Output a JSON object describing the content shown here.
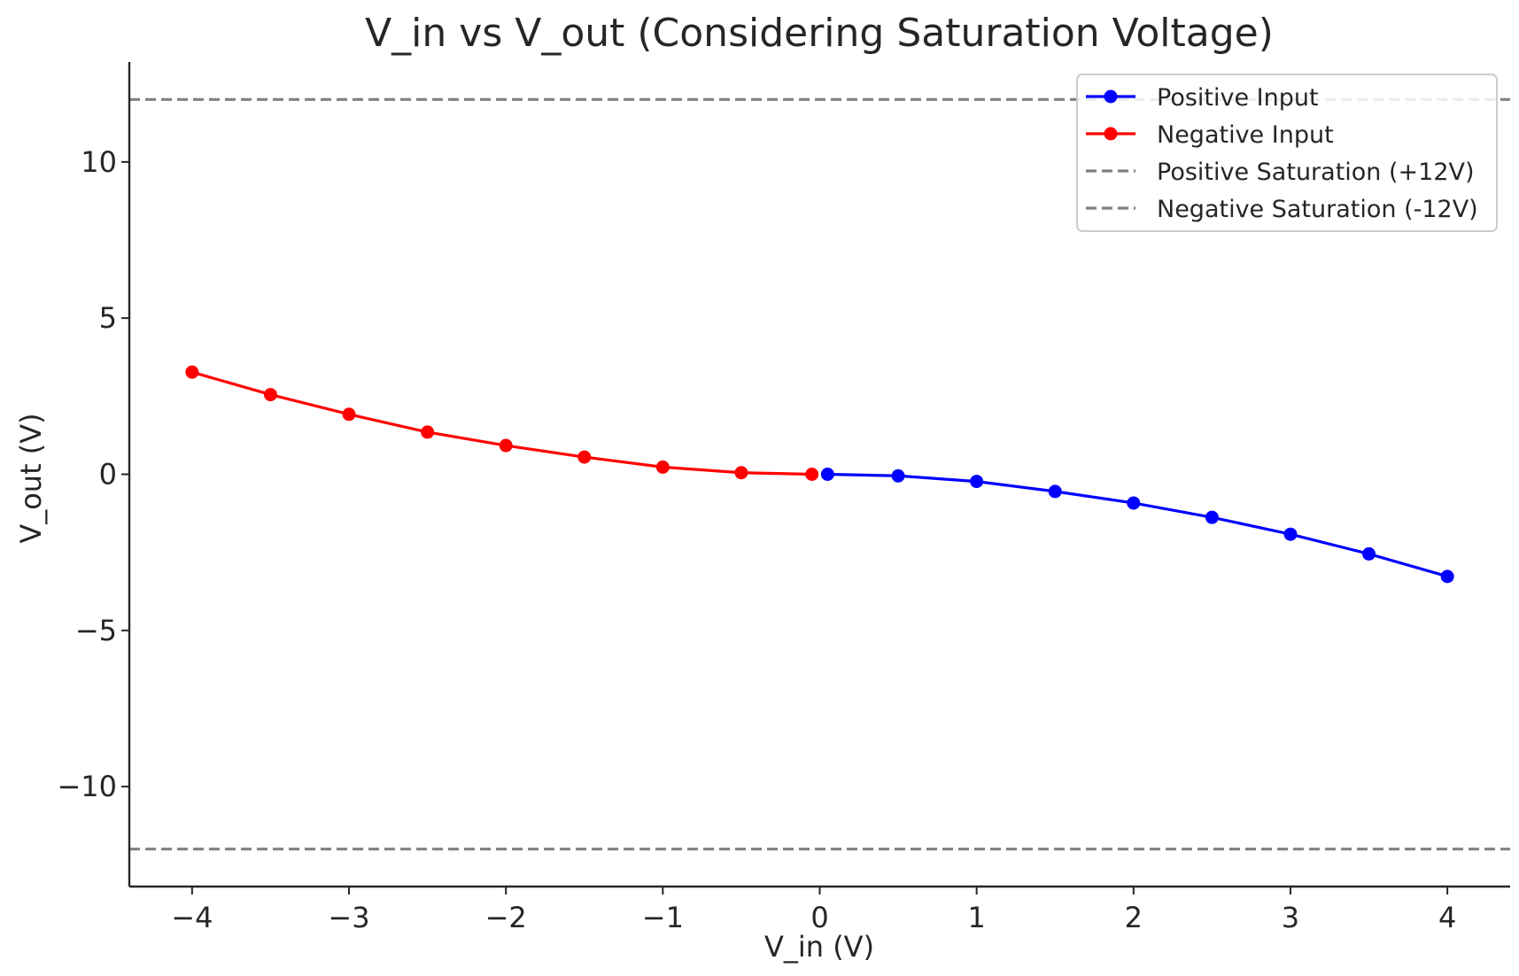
{
  "chart_data": {
    "type": "line",
    "title": "V_in vs V_out (Considering Saturation Voltage)",
    "xlabel": "V_in (V)",
    "ylabel": "V_out (V)",
    "xlim": [
      -4.4,
      4.4
    ],
    "ylim": [
      -13.2,
      13.2
    ],
    "xticks": [
      -4,
      -3,
      -2,
      -1,
      0,
      1,
      2,
      3,
      4
    ],
    "xtick_labels": [
      "−4",
      "−3",
      "−2",
      "−1",
      "0",
      "1",
      "2",
      "3",
      "4"
    ],
    "yticks": [
      -10,
      -5,
      0,
      5,
      10
    ],
    "ytick_labels": [
      "−10",
      "−5",
      "0",
      "5",
      "10"
    ],
    "grid": false,
    "legend_position": "top-right",
    "series": [
      {
        "name": "Positive Input",
        "color": "#0000ff",
        "style": "solid",
        "marker": "circle",
        "x": [
          0.05,
          0.5,
          1.0,
          1.5,
          2.0,
          2.5,
          3.0,
          3.5,
          4.0
        ],
        "y": [
          0.0,
          -0.05,
          -0.23,
          -0.55,
          -0.92,
          -1.38,
          -1.92,
          -2.55,
          -3.27
        ]
      },
      {
        "name": "Negative Input",
        "color": "#ff0000",
        "style": "solid",
        "marker": "circle",
        "x": [
          -4.0,
          -3.5,
          -3.0,
          -2.5,
          -2.0,
          -1.5,
          -1.0,
          -0.5,
          -0.05
        ],
        "y": [
          3.27,
          2.55,
          1.92,
          1.35,
          0.92,
          0.55,
          0.23,
          0.05,
          0.0
        ]
      },
      {
        "name": "Positive Saturation (+12V)",
        "color": "#808080",
        "style": "dashed",
        "y_constant": 12
      },
      {
        "name": "Negative Saturation (-12V)",
        "color": "#808080",
        "style": "dashed",
        "y_constant": -12
      }
    ]
  }
}
